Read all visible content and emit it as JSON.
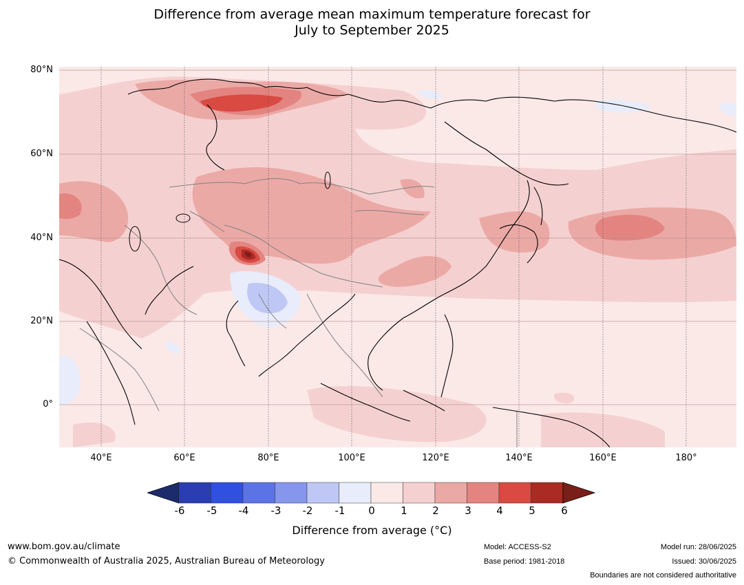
{
  "title": {
    "line1": "Difference from average mean maximum temperature forecast for",
    "line2": "July to September 2025"
  },
  "map": {
    "latitude_labels": [
      "80°N",
      "60°N",
      "40°N",
      "20°N",
      "0°"
    ],
    "longitude_labels": [
      "40°E",
      "60°E",
      "80°E",
      "100°E",
      "120°E",
      "140°E",
      "160°E",
      "180°"
    ]
  },
  "colorbar": {
    "tick_labels": [
      "-6",
      "-5",
      "-4",
      "-3",
      "-2",
      "-1",
      "0",
      "1",
      "2",
      "3",
      "4",
      "5",
      "6"
    ],
    "colors": [
      "#1c2b6b",
      "#2a3db1",
      "#3050e0",
      "#5c73e6",
      "#8696ec",
      "#bfc8f4",
      "#e8ecfb",
      "#fbe9e8",
      "#f4d1d0",
      "#eba9a6",
      "#e48480",
      "#d84a42",
      "#aa2a24",
      "#7a1e1a"
    ],
    "title": "Difference from average (°C)"
  },
  "footer": {
    "website": "www.bom.gov.au/climate",
    "copyright": "© Commonwealth of Australia 2025, Australian Bureau of Meteorology",
    "model": "Model: ACCESS-S2",
    "base_period": "Base period: 1981-2018",
    "model_run": "Model run: 28/06/2025",
    "issued": "Issued: 30/06/2025",
    "boundaries_note": "Boundaries are not considered authoritative"
  }
}
